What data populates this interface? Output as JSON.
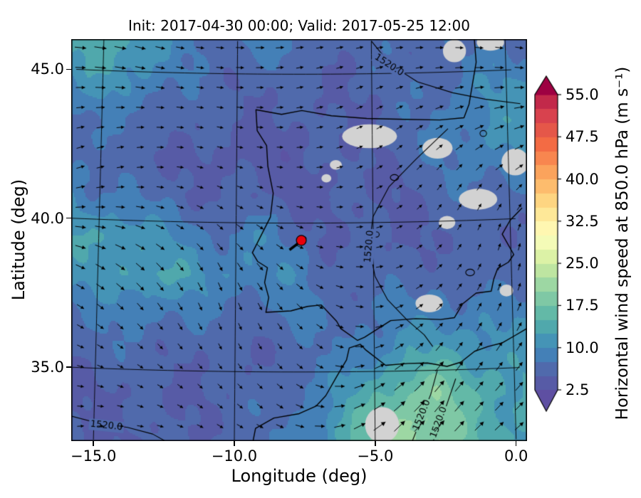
{
  "chart_data": {
    "type": "heatmap",
    "title": "Init: 2017-04-30 00:00; Valid: 2017-05-25 12:00",
    "xlabel": "Longitude (deg)",
    "ylabel": "Latitude (deg)",
    "xlim": [
      -16.0,
      0.6
    ],
    "ylim": [
      32.6,
      46.1
    ],
    "x_ticks": [
      -15.0,
      -10.0,
      -5.0,
      0.0
    ],
    "x_tick_labels": [
      "−15.0",
      "−10.0",
      "−5.0",
      "0.0"
    ],
    "y_ticks": [
      45.0,
      40.0,
      35.0
    ],
    "y_tick_labels": [
      "45.0",
      "40.0",
      "35.0"
    ],
    "grid_on": true,
    "colorbar": {
      "label": "Horizontal wind speed at 850.0 hPa (m s⁻¹)",
      "tick_values": [
        2.5,
        10.0,
        17.5,
        25.0,
        32.5,
        40.0,
        47.5,
        55.0
      ],
      "tick_labels": [
        "2.5",
        "10.0",
        "17.5",
        "25.0",
        "32.5",
        "40.0",
        "47.5",
        "55.0"
      ],
      "vmin": 0.0,
      "vmax": 57.5,
      "level_step": 2.5,
      "extend": "both",
      "colormap_name": "Spectral_r",
      "colormap_stops": [
        [
          0.0,
          "#5e4fa2"
        ],
        [
          0.09,
          "#5560a8"
        ],
        [
          0.17,
          "#3f89bb"
        ],
        [
          0.26,
          "#55b1a8"
        ],
        [
          0.35,
          "#8ed0a4"
        ],
        [
          0.44,
          "#d3eea0"
        ],
        [
          0.52,
          "#ffffbf"
        ],
        [
          0.61,
          "#fee08b"
        ],
        [
          0.7,
          "#fdae61"
        ],
        [
          0.8,
          "#f46d43"
        ],
        [
          0.9,
          "#d53e4f"
        ],
        [
          1.0,
          "#9e0142"
        ]
      ]
    },
    "wind_field": {
      "units": "m s⁻¹",
      "lons": [
        -16,
        -14.67,
        -13.33,
        -12,
        -10.67,
        -9.33,
        -8,
        -6.67,
        -5.33,
        -4,
        -2.67,
        -1.33,
        0
      ],
      "lats": [
        46,
        44.7,
        43.4,
        42.1,
        40.8,
        39.5,
        38.2,
        36.9,
        35.6,
        34.3,
        33
      ],
      "speed_ms": [
        [
          13,
          15,
          12,
          8,
          7,
          9,
          7,
          6,
          6,
          6,
          7,
          7,
          7
        ],
        [
          9,
          12,
          10,
          7,
          6,
          6,
          6,
          5,
          6,
          6,
          7,
          9,
          10
        ],
        [
          7,
          7,
          7,
          6,
          5,
          5,
          5,
          5,
          5,
          6,
          8,
          10,
          11
        ],
        [
          8,
          6,
          5,
          5,
          4,
          4,
          4,
          5,
          5,
          6,
          7,
          9,
          10
        ],
        [
          10,
          8,
          7,
          6,
          5,
          5,
          5,
          4,
          5,
          5,
          6,
          7,
          7
        ],
        [
          12,
          13,
          11,
          9,
          8,
          9,
          7,
          5,
          5,
          5,
          5,
          5,
          6
        ],
        [
          10,
          12,
          13,
          12,
          10,
          10,
          9,
          7,
          6,
          6,
          7,
          6,
          6
        ],
        [
          7,
          8,
          9,
          8,
          7,
          7,
          8,
          7,
          7,
          8,
          9,
          9,
          9
        ],
        [
          6,
          6,
          6,
          6,
          5,
          5,
          6,
          7,
          9,
          11,
          13,
          12,
          11
        ],
        [
          5,
          5,
          5,
          5,
          5,
          6,
          7,
          9,
          13,
          17,
          19,
          15,
          13
        ],
        [
          5,
          5,
          5,
          5,
          6,
          6,
          8,
          11,
          16,
          22,
          20,
          15,
          13
        ]
      ],
      "dir_deg": [
        [
          -5,
          -10,
          -15,
          -10,
          -5,
          0,
          5,
          10,
          10,
          5,
          0,
          -5,
          -10
        ],
        [
          0,
          -5,
          -10,
          -10,
          -5,
          0,
          10,
          15,
          20,
          15,
          10,
          5,
          0
        ],
        [
          10,
          5,
          0,
          -5,
          -10,
          -5,
          5,
          15,
          25,
          30,
          25,
          20,
          15
        ],
        [
          20,
          15,
          5,
          -5,
          -15,
          -10,
          0,
          10,
          25,
          40,
          45,
          40,
          30
        ],
        [
          10,
          5,
          -5,
          -15,
          -25,
          -20,
          -10,
          0,
          15,
          35,
          55,
          60,
          50
        ],
        [
          -10,
          -15,
          -25,
          -35,
          -45,
          -40,
          -25,
          -10,
          5,
          25,
          45,
          65,
          75
        ],
        [
          -25,
          -35,
          -45,
          -55,
          -65,
          -55,
          -40,
          -20,
          0,
          20,
          40,
          60,
          75
        ],
        [
          -30,
          -40,
          -50,
          -60,
          -70,
          -65,
          -50,
          -30,
          -5,
          25,
          45,
          60,
          65
        ],
        [
          -20,
          -30,
          -40,
          -50,
          -60,
          -60,
          -50,
          -30,
          10,
          35,
          50,
          55,
          55
        ],
        [
          -5,
          -15,
          -25,
          -35,
          -45,
          -45,
          -35,
          -10,
          25,
          40,
          50,
          50,
          48
        ],
        [
          5,
          0,
          -10,
          -20,
          -30,
          -30,
          -20,
          5,
          30,
          45,
          50,
          45,
          42
        ]
      ]
    },
    "height_contours": {
      "level_label": "1520.0",
      "level": 1520.0,
      "paths": [
        [
          [
            -5.0,
            46.1
          ],
          [
            -4.3,
            45.3
          ],
          [
            -3.3,
            44.7
          ],
          [
            -2.0,
            44.3
          ],
          [
            -0.8,
            44.05
          ],
          [
            0.5,
            43.85
          ]
        ],
        [
          [
            -2.2,
            43.1
          ],
          [
            -3.4,
            42.1
          ],
          [
            -4.4,
            41.2
          ],
          [
            -5.0,
            40.2
          ],
          [
            -5.15,
            39.2
          ],
          [
            -4.95,
            38.2
          ],
          [
            -4.5,
            37.4
          ],
          [
            -3.8,
            36.7
          ],
          [
            -3.2,
            36.2
          ],
          [
            -2.9,
            35.8
          ]
        ],
        [
          [
            -16.0,
            33.4
          ],
          [
            -14.8,
            33.15
          ],
          [
            -13.8,
            33.05
          ],
          [
            -12.9,
            32.85
          ],
          [
            -12.4,
            32.6
          ]
        ],
        [
          [
            -2.75,
            35.0
          ],
          [
            -3.0,
            34.2
          ],
          [
            -3.35,
            33.4
          ],
          [
            -3.7,
            32.6
          ]
        ],
        [
          [
            -2.1,
            34.7
          ],
          [
            -2.45,
            33.8
          ],
          [
            -2.75,
            33.1
          ],
          [
            -2.95,
            32.6
          ]
        ]
      ],
      "labels": [
        {
          "lon": -4.35,
          "lat": 45.28,
          "rot": 33
        },
        {
          "lon": -5.15,
          "lat": 39.2,
          "rot": -85
        },
        {
          "lon": -14.55,
          "lat": 33.08,
          "rot": 6
        },
        {
          "lon": -3.33,
          "lat": 33.5,
          "rot": -68
        },
        {
          "lon": -2.73,
          "lat": 33.25,
          "rot": -70
        }
      ],
      "small_loops": [
        [
          -4.9,
          39.6,
          0.12,
          0.09
        ],
        [
          -4.2,
          41.5,
          0.15,
          0.1
        ],
        [
          -1.5,
          38.25,
          0.16,
          0.11
        ],
        [
          -0.9,
          42.9,
          0.12,
          0.1
        ]
      ]
    },
    "masked_patches": [
      [
        -5.1,
        42.9,
        1.0,
        0.4
      ],
      [
        -2.6,
        42.45,
        0.55,
        0.35
      ],
      [
        -1.15,
        40.7,
        0.7,
        0.35
      ],
      [
        -2.3,
        39.95,
        0.3,
        0.22
      ],
      [
        -3.0,
        37.25,
        0.5,
        0.3
      ],
      [
        -4.75,
        33.2,
        0.62,
        0.6
      ],
      [
        0.25,
        41.9,
        0.5,
        0.45
      ],
      [
        -1.9,
        45.7,
        0.42,
        0.38
      ],
      [
        -0.55,
        45.95,
        0.5,
        0.28
      ],
      [
        -6.35,
        41.95,
        0.22,
        0.16
      ],
      [
        -6.7,
        41.5,
        0.18,
        0.14
      ],
      [
        -0.2,
        37.6,
        0.25,
        0.2
      ]
    ],
    "coastlines": {
      "iberia_france": [
        [
          -1.15,
          46.1
        ],
        [
          -1.1,
          45.3
        ],
        [
          -1.25,
          44.6
        ],
        [
          -1.4,
          43.9
        ],
        [
          -1.6,
          43.45
        ],
        [
          -2.5,
          43.4
        ],
        [
          -3.8,
          43.45
        ],
        [
          -5.2,
          43.5
        ],
        [
          -6.5,
          43.6
        ],
        [
          -7.6,
          43.78
        ],
        [
          -8.35,
          43.65
        ],
        [
          -9.3,
          43.8
        ],
        [
          -9.25,
          43.1
        ],
        [
          -8.9,
          42.6
        ],
        [
          -8.85,
          41.9
        ],
        [
          -8.65,
          41.0
        ],
        [
          -8.75,
          40.2
        ],
        [
          -9.4,
          39.0
        ],
        [
          -9.2,
          38.7
        ],
        [
          -8.85,
          38.5
        ],
        [
          -8.95,
          38.0
        ],
        [
          -8.8,
          37.5
        ],
        [
          -8.9,
          37.0
        ],
        [
          -8.0,
          37.05
        ],
        [
          -7.4,
          37.2
        ],
        [
          -6.9,
          37.25
        ],
        [
          -6.35,
          36.7
        ],
        [
          -6.2,
          36.45
        ],
        [
          -5.6,
          36.05
        ],
        [
          -5.35,
          36.15
        ],
        [
          -4.4,
          36.7
        ],
        [
          -3.5,
          36.75
        ],
        [
          -2.6,
          36.7
        ],
        [
          -2.1,
          36.75
        ],
        [
          -1.8,
          37.2
        ],
        [
          -1.3,
          37.55
        ],
        [
          -0.75,
          37.6
        ],
        [
          -0.65,
          38.0
        ],
        [
          -0.5,
          38.35
        ],
        [
          -0.1,
          38.55
        ],
        [
          0.1,
          38.8
        ],
        [
          -0.3,
          39.5
        ],
        [
          0.0,
          39.95
        ],
        [
          0.45,
          40.35
        ]
      ],
      "north_africa": [
        [
          -9.35,
          32.6
        ],
        [
          -9.25,
          33.1
        ],
        [
          -8.6,
          33.45
        ],
        [
          -7.7,
          33.6
        ],
        [
          -7.1,
          33.85
        ],
        [
          -6.75,
          34.2
        ],
        [
          -6.35,
          34.85
        ],
        [
          -6.0,
          35.4
        ],
        [
          -5.9,
          35.8
        ],
        [
          -5.5,
          35.92
        ],
        [
          -5.3,
          35.72
        ],
        [
          -4.6,
          35.2
        ],
        [
          -3.8,
          35.25
        ],
        [
          -3.1,
          35.25
        ],
        [
          -2.4,
          35.12
        ],
        [
          -1.9,
          35.25
        ],
        [
          -1.4,
          35.6
        ],
        [
          -0.9,
          35.75
        ],
        [
          -0.4,
          35.85
        ],
        [
          0.1,
          36.1
        ],
        [
          0.5,
          36.3
        ]
      ]
    },
    "marker": {
      "lon": -7.62,
      "lat": 39.42,
      "color": "#e8000b",
      "trail": [
        [
          -8.05,
          39.1
        ],
        [
          -7.45,
          39.52
        ]
      ]
    }
  }
}
